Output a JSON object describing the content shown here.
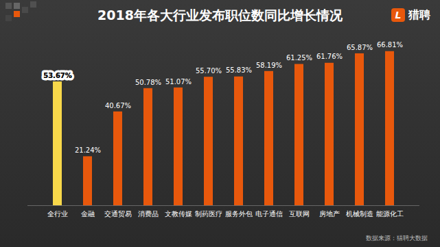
{
  "chart_data": {
    "type": "bar",
    "title": "2018年各大行业发布职位数同比增长情况",
    "categories": [
      "全行业",
      "金融",
      "交通贸易",
      "消费品",
      "文教传媒",
      "制药医疗",
      "服务外包",
      "电子通信",
      "互联网",
      "房地产",
      "机械制造",
      "能源化工"
    ],
    "values": [
      53.67,
      21.24,
      40.67,
      50.78,
      51.07,
      55.7,
      55.83,
      58.19,
      61.25,
      61.76,
      65.87,
      66.81
    ],
    "value_labels": [
      "53.67%",
      "21.24%",
      "40.67%",
      "50.78%",
      "51.07%",
      "55.70%",
      "55.83%",
      "58.19%",
      "61.25%",
      "61.76%",
      "65.87%",
      "66.81%"
    ],
    "colors": [
      "#f8d84a",
      "#e8580c",
      "#e8580c",
      "#e8580c",
      "#e8580c",
      "#e8580c",
      "#e8580c",
      "#e8580c",
      "#e8580c",
      "#e8580c",
      "#e8580c",
      "#e8580c"
    ],
    "ylim": [
      0,
      70
    ],
    "data_labels": true,
    "tick_labels": "x",
    "grid": false,
    "source": "数据来源：猎聘大数据"
  },
  "logo": {
    "icon": "L",
    "text": "猎聘"
  }
}
